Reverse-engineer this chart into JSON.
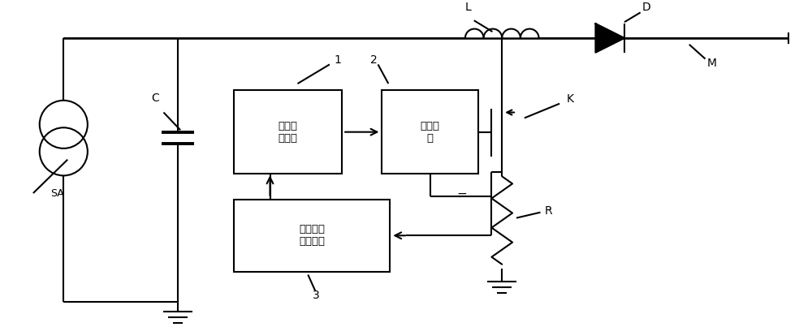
{
  "fig_width": 10.0,
  "fig_height": 4.03,
  "dpi": 100,
  "bg_color": "#ffffff",
  "line_color": "#000000",
  "line_width": 1.5,
  "box1_label": "分流控\n制电路",
  "box2_label": "驱动电\n路",
  "box3_label": "峰值电流\n抑制电路",
  "label_SA": "SA",
  "label_C": "C",
  "label_1": "1",
  "label_2": "2",
  "label_3": "3",
  "label_L": "L",
  "label_D": "D",
  "label_K": "K",
  "label_R": "R",
  "label_M": "M",
  "label_eq": "="
}
